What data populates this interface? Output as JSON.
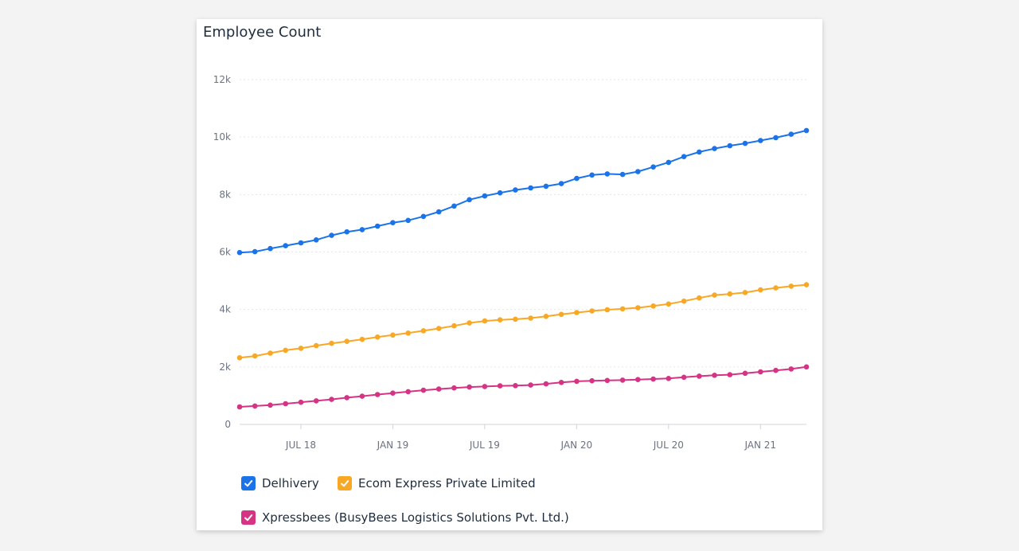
{
  "title": "Employee Count",
  "colors": {
    "Delhivery": "#1a73e8",
    "Ecom Express Private Limited": "#f9a825",
    "Xpressbees": "#d63384"
  },
  "legend": [
    {
      "label": "Delhivery",
      "checked": true
    },
    {
      "label": "Ecom Express Private Limited",
      "checked": true
    },
    {
      "label": "Xpressbees (BusyBees Logistics Solutions Pvt. Ltd.)",
      "checked": true
    }
  ],
  "chart_data": {
    "type": "line",
    "title": "Employee Count",
    "xlabel": "",
    "ylabel": "",
    "ylim": [
      0,
      12000
    ],
    "yticks": [
      "0",
      "2k",
      "4k",
      "6k",
      "8k",
      "10k",
      "12k"
    ],
    "xtick_labels": [
      "JUL 18",
      "JAN 19",
      "JUL 19",
      "JAN 20",
      "JUL 20",
      "JAN 21"
    ],
    "x_start": "2018-03",
    "x_end": "2021-04",
    "grid": true,
    "legend_position": "bottom",
    "series": [
      {
        "name": "Delhivery",
        "values": [
          5980,
          6010,
          6120,
          6220,
          6320,
          6420,
          6580,
          6700,
          6780,
          6900,
          7020,
          7100,
          7240,
          7400,
          7600,
          7820,
          7950,
          8060,
          8160,
          8230,
          8290,
          8380,
          8560,
          8680,
          8720,
          8700,
          8800,
          8960,
          9120,
          9320,
          9480,
          9600,
          9700,
          9780,
          9880,
          9980,
          10100,
          10230
        ]
      },
      {
        "name": "Ecom Express Private Limited",
        "values": [
          2320,
          2380,
          2480,
          2580,
          2650,
          2740,
          2820,
          2890,
          2960,
          3040,
          3110,
          3180,
          3260,
          3340,
          3430,
          3530,
          3600,
          3640,
          3660,
          3700,
          3760,
          3830,
          3890,
          3950,
          3990,
          4020,
          4060,
          4120,
          4190,
          4290,
          4400,
          4500,
          4540,
          4590,
          4680,
          4750,
          4810,
          4860
        ]
      },
      {
        "name": "Xpressbees (BusyBees Logistics Solutions Pvt. Ltd.)",
        "values": [
          610,
          640,
          670,
          720,
          770,
          820,
          870,
          930,
          980,
          1040,
          1090,
          1140,
          1190,
          1230,
          1270,
          1300,
          1320,
          1340,
          1350,
          1370,
          1410,
          1460,
          1500,
          1520,
          1530,
          1540,
          1560,
          1580,
          1600,
          1640,
          1680,
          1710,
          1730,
          1780,
          1830,
          1880,
          1930,
          2000
        ]
      }
    ]
  }
}
